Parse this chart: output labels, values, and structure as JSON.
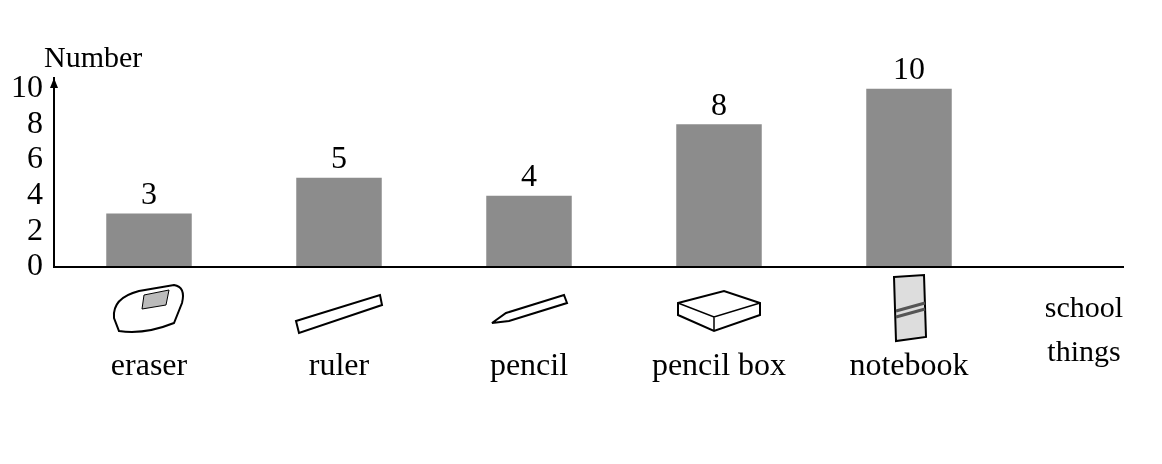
{
  "chart_data": {
    "type": "bar",
    "xlabel": "school things",
    "ylabel": "Number",
    "categories": [
      "eraser",
      "ruler",
      "pencil",
      "pencil box",
      "notebook"
    ],
    "values": [
      3,
      5,
      4,
      8,
      10
    ],
    "color": "#8c8c8c",
    "ylim": [
      0,
      10.6
    ],
    "yticks": [
      0,
      2,
      4,
      6,
      8,
      10
    ],
    "grid": false,
    "legend": false,
    "data_labels": true
  }
}
